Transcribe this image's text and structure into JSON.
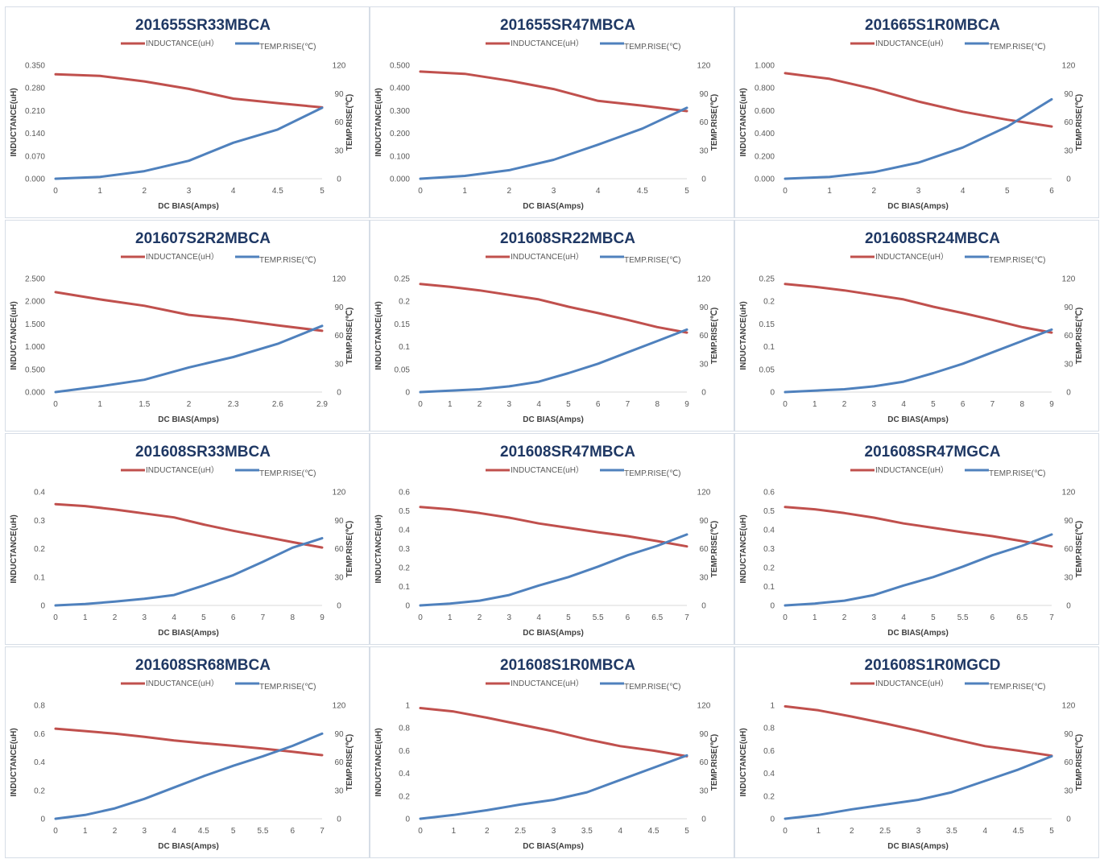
{
  "page_header": "",
  "colors": {
    "inductance": "#c0504d",
    "temp": "#4f81bd",
    "grid": "#d9d9d9"
  },
  "chart_data": [
    {
      "type": "line",
      "title": "201655SR33MBCA",
      "xlabel": "DC BIAS(Amps)",
      "ylabel": "INDUCTANCE(uH)",
      "y2label": "TEMP.RISE(℃)",
      "legend": [
        "INDUCTANCE(uH）",
        "TEMP.RISE(℃)"
      ],
      "legend_position": "top",
      "grid": false,
      "categories": [
        "0",
        "1",
        "2",
        "3",
        "4",
        "4.5",
        "5"
      ],
      "y_ticks": [
        "0.000",
        "0.070",
        "0.140",
        "0.210",
        "0.280",
        "0.350"
      ],
      "ylim": [
        0,
        0.35
      ],
      "y2_ticks": [
        "0",
        "30",
        "60",
        "90",
        "120"
      ],
      "y2lim": [
        0,
        120
      ],
      "series": [
        {
          "name": "INDUCTANCE(uH）",
          "axis": "left",
          "values": [
            0.322,
            0.317,
            0.3,
            0.277,
            0.247,
            0.233,
            0.22
          ]
        },
        {
          "name": "TEMP.RISE(℃)",
          "axis": "right",
          "values": [
            0,
            2,
            8,
            19,
            38,
            52,
            75
          ]
        }
      ]
    },
    {
      "type": "line",
      "title": "201655SR47MBCA",
      "xlabel": "DC BIAS(Amps)",
      "ylabel": "INDUCTANCE(uH)",
      "y2label": "TEMP.RISE(℃)",
      "legend": [
        "INDUCTANCE(uH）",
        "TEMP.RISE(℃)"
      ],
      "legend_position": "top",
      "grid": false,
      "categories": [
        "0",
        "1",
        "2",
        "3",
        "4",
        "4.5",
        "5"
      ],
      "y_ticks": [
        "0.000",
        "0.100",
        "0.200",
        "0.300",
        "0.400",
        "0.500"
      ],
      "ylim": [
        0,
        0.5
      ],
      "y2_ticks": [
        "0",
        "30",
        "60",
        "90",
        "120"
      ],
      "y2lim": [
        0,
        120
      ],
      "series": [
        {
          "name": "INDUCTANCE(uH）",
          "axis": "left",
          "values": [
            0.472,
            0.462,
            0.432,
            0.395,
            0.343,
            0.322,
            0.298
          ]
        },
        {
          "name": "TEMP.RISE(℃)",
          "axis": "right",
          "values": [
            0,
            3,
            9,
            20,
            36,
            53,
            75
          ]
        }
      ]
    },
    {
      "type": "line",
      "title": "201665S1R0MBCA",
      "xlabel": "DC BIAS(Amps)",
      "ylabel": "INDUCTANCE(uH)",
      "y2label": "TEMP.RISE(℃)",
      "legend": [
        "INDUCTANCE(uH）",
        "TEMP.RISE(℃)"
      ],
      "legend_position": "top",
      "grid": false,
      "categories": [
        "0",
        "1",
        "2",
        "3",
        "4",
        "5",
        "6"
      ],
      "y_ticks": [
        "0.000",
        "0.200",
        "0.400",
        "0.600",
        "0.800",
        "1.000"
      ],
      "ylim": [
        0,
        1
      ],
      "y2_ticks": [
        "0",
        "30",
        "60",
        "90",
        "120"
      ],
      "y2lim": [
        0,
        120
      ],
      "series": [
        {
          "name": "INDUCTANCE(uH）",
          "axis": "left",
          "values": [
            0.93,
            0.88,
            0.79,
            0.68,
            0.59,
            0.52,
            0.46
          ]
        },
        {
          "name": "TEMP.RISE(℃)",
          "axis": "right",
          "values": [
            0,
            2,
            7,
            17,
            33,
            55,
            84
          ]
        }
      ]
    },
    {
      "type": "line",
      "title": "201607S2R2MBCA",
      "xlabel": "DC BIAS(Amps)",
      "ylabel": "INDUCTANCE(uH)",
      "y2label": "TEMP.RISE(℃)",
      "legend": [
        "INDUCTANCE(uH）",
        "TEMP.RISE(℃)"
      ],
      "legend_position": "top",
      "grid": false,
      "categories": [
        "0",
        "1",
        "1.5",
        "2",
        "2.3",
        "2.6",
        "2.9"
      ],
      "y_ticks": [
        "0.000",
        "0.500",
        "1.000",
        "1.500",
        "2.000",
        "2.500"
      ],
      "ylim": [
        0,
        2.5
      ],
      "y2_ticks": [
        "0",
        "30",
        "60",
        "90",
        "120"
      ],
      "y2lim": [
        0,
        120
      ],
      "series": [
        {
          "name": "INDUCTANCE(uH）",
          "axis": "left",
          "values": [
            2.2,
            2.04,
            1.9,
            1.7,
            1.6,
            1.47,
            1.35
          ]
        },
        {
          "name": "TEMP.RISE(℃)",
          "axis": "right",
          "values": [
            0,
            6,
            13,
            26,
            37,
            51,
            70
          ]
        }
      ]
    },
    {
      "type": "line",
      "title": "201608SR22MBCA",
      "xlabel": "DC BIAS(Amps)",
      "ylabel": "INDUCTANCE(uH)",
      "y2label": "TEMP.RISE(℃)",
      "legend": [
        "INDUCTANCE(uH）",
        "TEMP.RISE(℃)"
      ],
      "legend_position": "top",
      "grid": false,
      "categories": [
        "0",
        "1",
        "2",
        "3",
        "4",
        "5",
        "6",
        "7",
        "8",
        "9"
      ],
      "y_ticks": [
        "0",
        "0.05",
        "0.1",
        "0.15",
        "0.2",
        "0.25"
      ],
      "ylim": [
        0,
        0.25
      ],
      "y2_ticks": [
        "0",
        "30",
        "60",
        "90",
        "120"
      ],
      "y2lim": [
        0,
        120
      ],
      "series": [
        {
          "name": "INDUCTANCE(uH）",
          "axis": "left",
          "values": [
            0.238,
            0.232,
            0.224,
            0.214,
            0.204,
            0.188,
            0.174,
            0.159,
            0.143,
            0.131
          ]
        },
        {
          "name": "TEMP.RISE(℃)",
          "axis": "right",
          "values": [
            0,
            1.5,
            3,
            6,
            11,
            20,
            30,
            42,
            54,
            66
          ]
        }
      ]
    },
    {
      "type": "line",
      "title": "201608SR24MBCA",
      "xlabel": "DC BIAS(Amps)",
      "ylabel": "INDUCTANCE(uH)",
      "y2label": "TEMP.RISE(℃)",
      "legend": [
        "INDUCTANCE(uH）",
        "TEMP.RISE(℃)"
      ],
      "legend_position": "top",
      "grid": false,
      "categories": [
        "0",
        "1",
        "2",
        "3",
        "4",
        "5",
        "6",
        "7",
        "8",
        "9"
      ],
      "y_ticks": [
        "0",
        "0.05",
        "0.1",
        "0.15",
        "0.2",
        "0.25"
      ],
      "ylim": [
        0,
        0.25
      ],
      "y2_ticks": [
        "0",
        "30",
        "60",
        "90",
        "120"
      ],
      "y2lim": [
        0,
        120
      ],
      "series": [
        {
          "name": "INDUCTANCE(uH）",
          "axis": "left",
          "values": [
            0.238,
            0.232,
            0.224,
            0.214,
            0.204,
            0.188,
            0.174,
            0.159,
            0.143,
            0.131
          ]
        },
        {
          "name": "TEMP.RISE(℃)",
          "axis": "right",
          "values": [
            0,
            1.5,
            3,
            6,
            11,
            20,
            30,
            42,
            54,
            66
          ]
        }
      ]
    },
    {
      "type": "line",
      "title": "201608SR33MBCA",
      "xlabel": "DC BIAS(Amps)",
      "ylabel": "INDUCTANCE(uH)",
      "y2label": "TEMP.RISE(℃)",
      "legend": [
        "INDUCTANCE(uH）",
        "TEMP.RISE(℃)"
      ],
      "legend_position": "top",
      "grid": false,
      "categories": [
        "0",
        "1",
        "2",
        "3",
        "4",
        "5",
        "6",
        "7",
        "8",
        "9"
      ],
      "y_ticks": [
        "0",
        "0.1",
        "0.2",
        "0.3",
        "0.4"
      ],
      "ylim": [
        0,
        0.4
      ],
      "y2_ticks": [
        "0",
        "30",
        "60",
        "90",
        "120"
      ],
      "y2lim": [
        0,
        120
      ],
      "series": [
        {
          "name": "INDUCTANCE(uH）",
          "axis": "left",
          "values": [
            0.357,
            0.35,
            0.338,
            0.324,
            0.31,
            0.285,
            0.263,
            0.243,
            0.223,
            0.204
          ]
        },
        {
          "name": "TEMP.RISE(℃)",
          "axis": "right",
          "values": [
            0,
            1.5,
            4,
            7,
            11,
            21,
            32,
            46,
            61,
            71
          ]
        }
      ]
    },
    {
      "type": "line",
      "title": "201608SR47MBCA",
      "xlabel": "DC BIAS(Amps)",
      "ylabel": "INDUCTANCE(uH)",
      "y2label": "TEMP.RISE(℃)",
      "legend": [
        "INDUCTANCE(uH）",
        "TEMP.RISE(℃)"
      ],
      "legend_position": "top",
      "grid": false,
      "categories": [
        "0",
        "1",
        "2",
        "3",
        "4",
        "5",
        "5.5",
        "6",
        "6.5",
        "7"
      ],
      "y_ticks": [
        "0",
        "0.1",
        "0.2",
        "0.3",
        "0.4",
        "0.5",
        "0.6"
      ],
      "ylim": [
        0,
        0.6
      ],
      "y2_ticks": [
        "0",
        "30",
        "60",
        "90",
        "120"
      ],
      "y2lim": [
        0,
        120
      ],
      "series": [
        {
          "name": "INDUCTANCE(uH）",
          "axis": "left",
          "values": [
            0.52,
            0.508,
            0.488,
            0.464,
            0.433,
            0.41,
            0.387,
            0.366,
            0.34,
            0.312
          ]
        },
        {
          "name": "TEMP.RISE(℃)",
          "axis": "right",
          "values": [
            0,
            2,
            5,
            11,
            21,
            30,
            41,
            53,
            63,
            75
          ]
        }
      ]
    },
    {
      "type": "line",
      "title": "201608SR47MGCA",
      "xlabel": "DC BIAS(Amps)",
      "ylabel": "INDUCTANCE(uH)",
      "y2label": "TEMP.RISE(℃)",
      "legend": [
        "INDUCTANCE(uH）",
        "TEMP.RISE(℃)"
      ],
      "legend_position": "top",
      "grid": false,
      "categories": [
        "0",
        "1",
        "2",
        "3",
        "4",
        "5",
        "5.5",
        "6",
        "6.5",
        "7"
      ],
      "y_ticks": [
        "0",
        "0.1",
        "0.2",
        "0.3",
        "0.4",
        "0.5",
        "0.6"
      ],
      "ylim": [
        0,
        0.6
      ],
      "y2_ticks": [
        "0",
        "30",
        "60",
        "90",
        "120"
      ],
      "y2lim": [
        0,
        120
      ],
      "series": [
        {
          "name": "INDUCTANCE(uH）",
          "axis": "left",
          "values": [
            0.52,
            0.508,
            0.488,
            0.464,
            0.433,
            0.41,
            0.387,
            0.366,
            0.34,
            0.312
          ]
        },
        {
          "name": "TEMP.RISE(℃)",
          "axis": "right",
          "values": [
            0,
            2,
            5,
            11,
            21,
            30,
            41,
            53,
            63,
            75
          ]
        }
      ]
    },
    {
      "type": "line",
      "title": "201608SR68MBCA",
      "xlabel": "DC BIAS(Amps)",
      "ylabel": "INDUCTANCE(uH)",
      "y2label": "TEMP.RISE(℃)",
      "legend": [
        "INDUCTANCE(uH）",
        "TEMP.RISE(℃)"
      ],
      "legend_position": "top",
      "grid": false,
      "categories": [
        "0",
        "1",
        "2",
        "3",
        "4",
        "4.5",
        "5",
        "5.5",
        "6",
        "7"
      ],
      "y_ticks": [
        "0",
        "0.2",
        "0.4",
        "0.6",
        "0.8"
      ],
      "ylim": [
        0,
        0.8
      ],
      "y2_ticks": [
        "0",
        "30",
        "60",
        "90",
        "120"
      ],
      "y2lim": [
        0,
        120
      ],
      "series": [
        {
          "name": "INDUCTANCE(uH）",
          "axis": "left",
          "values": [
            0.635,
            0.618,
            0.6,
            0.577,
            0.552,
            0.532,
            0.514,
            0.494,
            0.472,
            0.448
          ]
        },
        {
          "name": "TEMP.RISE(℃)",
          "axis": "right",
          "values": [
            0,
            4,
            11,
            21,
            33,
            45,
            56,
            66,
            77,
            90
          ]
        }
      ]
    },
    {
      "type": "line",
      "title": "201608S1R0MBCA",
      "xlabel": "DC BIAS(Amps)",
      "ylabel": "INDUCTANCE(uH)",
      "y2label": "TEMP.RISE(℃)",
      "legend": [
        "INDUCTANCE(uH）",
        "TEMP.RISE(℃)"
      ],
      "legend_position": "top",
      "grid": false,
      "categories": [
        "0",
        "1",
        "2",
        "2.5",
        "3",
        "3.5",
        "4",
        "4.5",
        "5"
      ],
      "y_ticks": [
        "0",
        "0.2",
        "0.4",
        "0.6",
        "0.8",
        "1"
      ],
      "ylim": [
        0,
        1
      ],
      "y2_ticks": [
        "0",
        "30",
        "60",
        "90",
        "120"
      ],
      "y2lim": [
        0,
        120
      ],
      "series": [
        {
          "name": "INDUCTANCE(uH）",
          "axis": "left",
          "values": [
            0.975,
            0.945,
            0.89,
            0.83,
            0.77,
            0.7,
            0.64,
            0.6,
            0.55
          ]
        },
        {
          "name": "TEMP.RISE(℃)",
          "axis": "right",
          "values": [
            0,
            4,
            9,
            15,
            20,
            28,
            41,
            54,
            67
          ]
        }
      ]
    },
    {
      "type": "line",
      "title": "201608S1R0MGCD",
      "xlabel": "DC BIAS(Amps)",
      "ylabel": "INDUCTANCE(uH)",
      "y2label": "TEMP.RISE(℃)",
      "legend": [
        "INDUCTANCE(uH）",
        "TEMP.RISE(℃)"
      ],
      "legend_position": "top",
      "grid": false,
      "categories": [
        "0",
        "1",
        "2",
        "2.5",
        "3",
        "3.5",
        "4",
        "4.5",
        "5"
      ],
      "y_ticks": [
        "0",
        "0.2",
        "0.4",
        "0.6",
        "0.8",
        "1"
      ],
      "ylim": [
        0,
        1
      ],
      "y2_ticks": [
        "0",
        "30",
        "60",
        "90",
        "120"
      ],
      "y2lim": [
        0,
        120
      ],
      "series": [
        {
          "name": "INDUCTANCE(uH）",
          "axis": "left",
          "values": [
            0.99,
            0.955,
            0.9,
            0.84,
            0.775,
            0.705,
            0.64,
            0.6,
            0.555
          ]
        },
        {
          "name": "TEMP.RISE(℃)",
          "axis": "right",
          "values": [
            0,
            4,
            10,
            15,
            20,
            28,
            40,
            52,
            66
          ]
        }
      ]
    }
  ]
}
